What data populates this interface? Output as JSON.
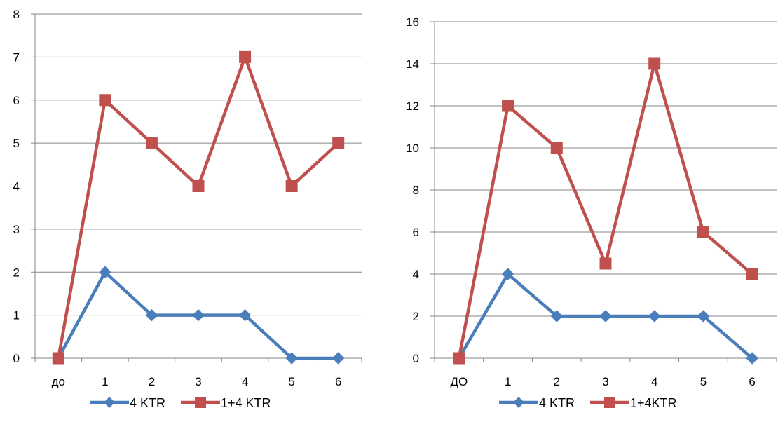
{
  "colors": {
    "series_blue": "#4A7EBB",
    "series_red": "#C0504D",
    "grid": "#868686",
    "axis": "#868686"
  },
  "chart_data": [
    {
      "type": "line",
      "title": "",
      "xlabel": "",
      "ylabel": "",
      "categories": [
        "до",
        "1",
        "2",
        "3",
        "4",
        "5",
        "6"
      ],
      "ylim": [
        0,
        8
      ],
      "yticks": [
        0,
        1,
        2,
        3,
        4,
        5,
        6,
        7,
        8
      ],
      "grid": true,
      "legend_position": "bottom",
      "series": [
        {
          "name": "4 KTR",
          "marker": "diamond",
          "color": "#4A7EBB",
          "values": [
            0,
            2,
            1,
            1,
            1,
            0,
            0
          ]
        },
        {
          "name": "1+4 KTR",
          "marker": "square",
          "color": "#C0504D",
          "values": [
            0,
            6,
            5,
            4,
            7,
            4,
            5
          ]
        }
      ]
    },
    {
      "type": "line",
      "title": "",
      "xlabel": "",
      "ylabel": "",
      "categories": [
        "ДО",
        "1",
        "2",
        "3",
        "4",
        "5",
        "6"
      ],
      "ylim": [
        0,
        16
      ],
      "yticks": [
        0,
        2,
        4,
        6,
        8,
        10,
        12,
        14,
        16
      ],
      "grid": true,
      "legend_position": "bottom",
      "series": [
        {
          "name": "4 KTR",
          "marker": "diamond",
          "color": "#4A7EBB",
          "values": [
            0,
            4,
            2,
            2,
            2,
            2,
            0
          ]
        },
        {
          "name": "1+4KTR",
          "marker": "square",
          "color": "#C0504D",
          "values": [
            0,
            12,
            10,
            4.5,
            14,
            6,
            4
          ]
        }
      ]
    }
  ]
}
